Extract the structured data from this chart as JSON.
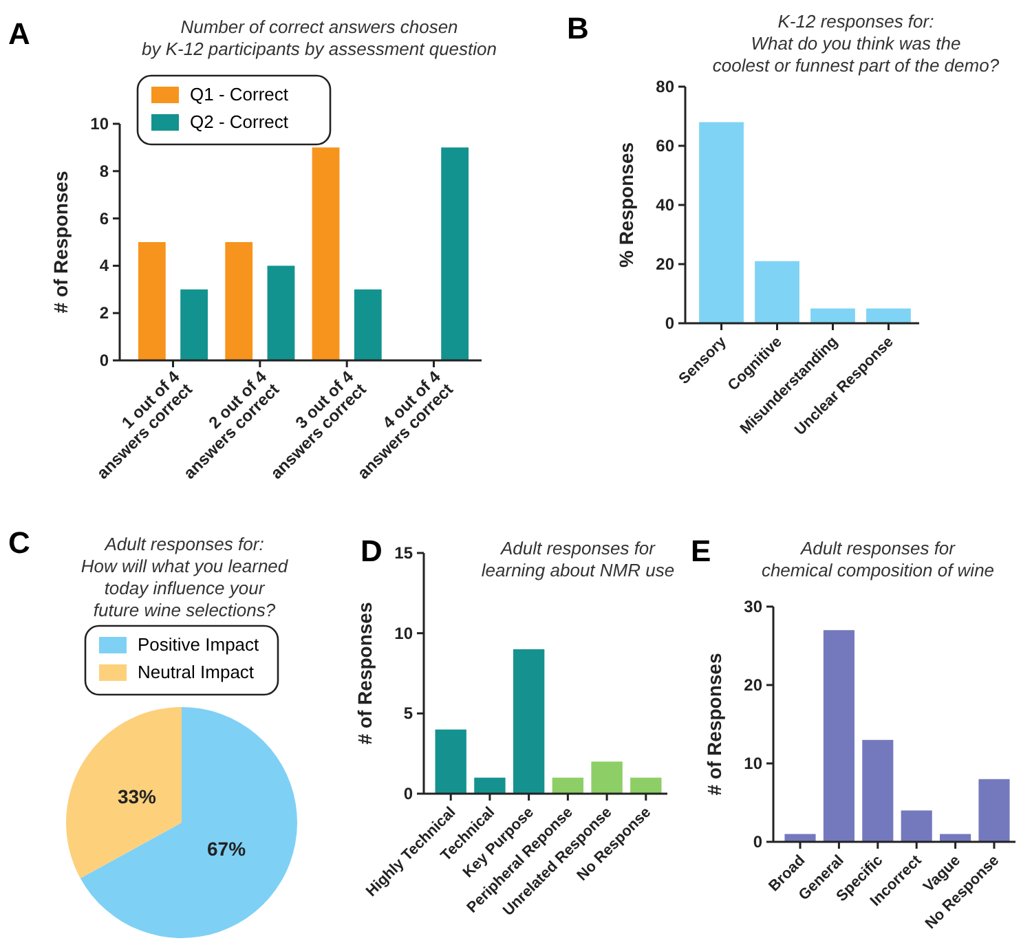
{
  "chart_data": [
    {
      "type": "bar",
      "title": "Number of correct answers chosen\nby K-12 participants by assessment question",
      "ylabel": "# of Responses",
      "annotations": [
        "A"
      ],
      "categories": [
        "1 out of 4\nanswers correct",
        "2 out of 4\nanswers correct",
        "3 out of 4\nanswers correct",
        "4 out of 4\nanswers correct"
      ],
      "series": [
        {
          "name": "Q1 - Correct",
          "color": "#f7941d",
          "values": [
            5,
            5,
            9,
            0
          ]
        },
        {
          "name": "Q2 - Correct",
          "color": "#13938f",
          "values": [
            3,
            4,
            3,
            9
          ]
        }
      ],
      "ylim": [
        0,
        10
      ],
      "yticks": [
        0,
        2,
        4,
        6,
        8,
        10
      ],
      "legend": "top left"
    },
    {
      "type": "bar",
      "title": "K-12 responses for:\nWhat do you think was the\ncoolest or funnest part of the demo?",
      "ylabel": "% Responses",
      "annotations": [
        "B"
      ],
      "categories": [
        "Sensory",
        "Cognitive",
        "Misunderstanding",
        "Unclear Response"
      ],
      "values": [
        68,
        21,
        5,
        5
      ],
      "color": "#7fd3f5",
      "ylim": [
        0,
        80
      ],
      "yticks": [
        0,
        20,
        40,
        60,
        80
      ]
    },
    {
      "type": "pie",
      "title": "Adult responses for:\nHow will what you learned\ntoday influence your\nfuture wine selections?",
      "annotations": [
        "C"
      ],
      "categories": [
        "Positive Impact",
        "Neutral Impact"
      ],
      "values": [
        67,
        33
      ],
      "colors": [
        "#7fd0f5",
        "#fdd07c"
      ],
      "value_labels": [
        "67%",
        "33%"
      ],
      "legend": "top"
    },
    {
      "type": "bar",
      "title": "Adult responses for\nlearning about NMR use",
      "ylabel": "# of Responses",
      "annotations": [
        "D"
      ],
      "categories": [
        "Highly Technical",
        "Technical",
        "Key Purpose",
        "Peripheral Reponse",
        "Unrelated Response",
        "No Response"
      ],
      "values": [
        4,
        1,
        9,
        1,
        2,
        1
      ],
      "colors": [
        "#159290",
        "#159290",
        "#159290",
        "#8dcf66",
        "#8dcf66",
        "#8dcf66"
      ],
      "ylim": [
        0,
        15
      ],
      "yticks": [
        0,
        5,
        10,
        15
      ]
    },
    {
      "type": "bar",
      "title": "Adult responses for\nchemical composition of wine",
      "ylabel": "# of Responses",
      "annotations": [
        "E"
      ],
      "categories": [
        "Broad",
        "General",
        "Specific",
        "Incorrect",
        "Vague",
        "No Response"
      ],
      "values": [
        1,
        27,
        13,
        4,
        1,
        8
      ],
      "color": "#7479be",
      "ylim": [
        0,
        30
      ],
      "yticks": [
        0,
        10,
        20,
        30
      ]
    }
  ]
}
